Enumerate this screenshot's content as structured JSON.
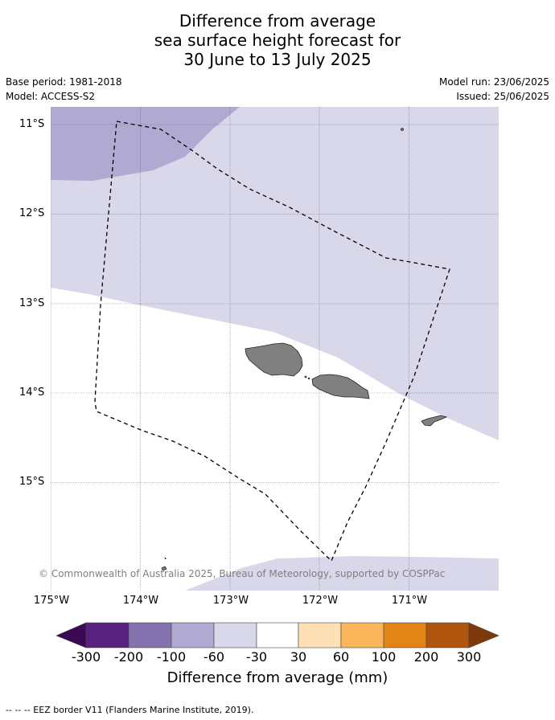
{
  "title": {
    "line1": "Difference from average",
    "line2": "sea surface height forecast for",
    "line3": "30 June to 13 July 2025"
  },
  "meta": {
    "base_period": "Base period: 1981-2018",
    "model": "Model: ACCESS-S2",
    "model_run": "Model run: 23/06/2025",
    "issued": "Issued: 25/06/2025"
  },
  "map": {
    "lat_labels": [
      "11°S",
      "12°S",
      "13°S",
      "14°S",
      "15°S"
    ],
    "lon_labels": [
      "175°W",
      "174°W",
      "173°W",
      "172°W",
      "171°W"
    ],
    "copyright": "© Commonwealth of Australia 2025, Bureau of Meteorology, supported by COSPPac",
    "colors": {
      "land": "#808080",
      "ocean_neutral": "#ffffff",
      "band_minus30_minus60": "#d8d8ea",
      "band_minus60_minus100": "#b0a9d1",
      "eez_border": "#000000"
    }
  },
  "colorbar": {
    "ticks": [
      "-300",
      "-200",
      "-100",
      "-60",
      "-30",
      "30",
      "60",
      "100",
      "200",
      "300"
    ],
    "label": "Difference from average (mm)",
    "colors": {
      "below_min": "#3c0a55",
      "c1": "#58217f",
      "c2": "#8373ae",
      "c3": "#b0a9d1",
      "c4": "#d8d8ea",
      "c5": "#ffffff",
      "c6": "#fde0b6",
      "c7": "#fbb65c",
      "c8": "#e38416",
      "c9": "#b0560c",
      "above_max": "#7e390b"
    }
  },
  "legend_note": "--  --  -- EEZ border V11 (Flanders Marine Institute, 2019)."
}
